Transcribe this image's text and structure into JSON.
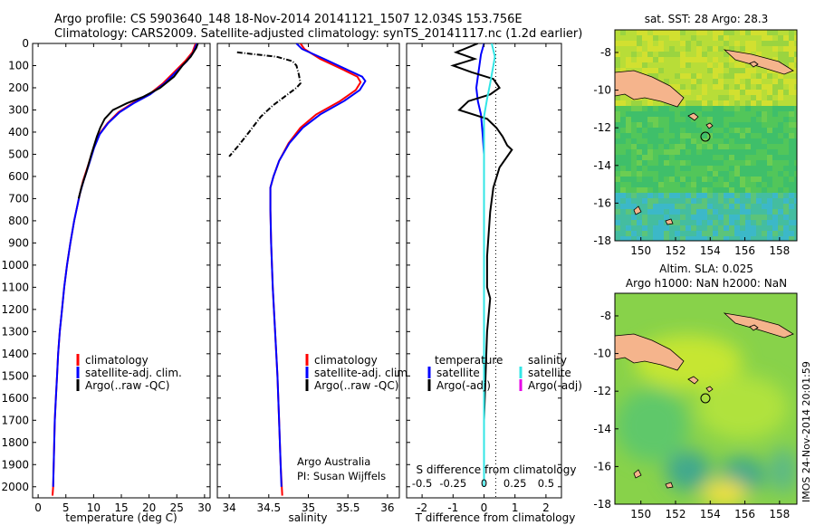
{
  "title": {
    "line1": "Argo profile: CS 5903640_148 18-Nov-2014 20141121_1507 12.034S 153.756E",
    "line2": "Climatology: CARS2009. Satellite-adjusted climatology: synTS_20141117.nc (1.2d earlier)"
  },
  "colors": {
    "climatology": "#ff0000",
    "satellite": "#0000ff",
    "argo": "#000000",
    "sal_satellite": "#33e6e6",
    "sal_argo": "#e600e6",
    "land": "#f5b48c"
  },
  "chart_data": [
    {
      "type": "line",
      "xlabel": "temperature (deg C)",
      "xticks": [
        "0",
        "5",
        "10",
        "15",
        "20",
        "25",
        "30"
      ],
      "xlim": [
        -1,
        31
      ],
      "ylim": [
        0,
        2050
      ],
      "yticks": [
        "0",
        "100",
        "200",
        "300",
        "400",
        "500",
        "600",
        "700",
        "800",
        "900",
        "1000",
        "1100",
        "1200",
        "1300",
        "1400",
        "1500",
        "1600",
        "1700",
        "1800",
        "1900",
        "2000"
      ],
      "legend": {
        "position": "lower-middle",
        "entries": [
          "climatology",
          "satellite-adj. clim.",
          "Argo(..raw -QC)"
        ]
      },
      "series": [
        {
          "name": "climatology",
          "color": "#ff0000",
          "points": [
            [
              28.4,
              0
            ],
            [
              27.8,
              40
            ],
            [
              26.5,
              80
            ],
            [
              24.5,
              130
            ],
            [
              22.5,
              180
            ],
            [
              20,
              230
            ],
            [
              17,
              270
            ],
            [
              14.5,
              310
            ],
            [
              12.5,
              360
            ],
            [
              11,
              410
            ],
            [
              10,
              470
            ],
            [
              9,
              550
            ],
            [
              8.1,
              620
            ],
            [
              7.5,
              680
            ],
            [
              6.5,
              800
            ],
            [
              5.8,
              900
            ],
            [
              5.2,
              1000
            ],
            [
              4.7,
              1100
            ],
            [
              4.3,
              1200
            ],
            [
              3.9,
              1300
            ],
            [
              3.6,
              1400
            ],
            [
              3.4,
              1500
            ],
            [
              3.2,
              1600
            ],
            [
              3,
              1700
            ],
            [
              2.9,
              1800
            ],
            [
              2.8,
              1900
            ],
            [
              2.7,
              2000
            ],
            [
              2.6,
              2040
            ]
          ]
        },
        {
          "name": "satellite-adj. clim.",
          "color": "#0000ff",
          "points": [
            [
              28.6,
              0
            ],
            [
              28,
              40
            ],
            [
              26.8,
              80
            ],
            [
              24.8,
              130
            ],
            [
              22.8,
              180
            ],
            [
              20.2,
              230
            ],
            [
              17.2,
              270
            ],
            [
              14.7,
              310
            ],
            [
              12.6,
              360
            ],
            [
              11.1,
              410
            ],
            [
              10.1,
              470
            ],
            [
              9.1,
              550
            ],
            [
              8.2,
              620
            ],
            [
              7.5,
              680
            ],
            [
              6.5,
              800
            ],
            [
              5.8,
              900
            ],
            [
              5.2,
              1000
            ],
            [
              4.7,
              1100
            ],
            [
              4.3,
              1200
            ],
            [
              3.9,
              1300
            ],
            [
              3.6,
              1400
            ],
            [
              3.4,
              1500
            ],
            [
              3.2,
              1600
            ],
            [
              3,
              1700
            ],
            [
              2.9,
              1800
            ],
            [
              2.8,
              1900
            ],
            [
              2.7,
              2000
            ]
          ]
        },
        {
          "name": "Argo(..raw -QC)",
          "color": "#000000",
          "points": [
            [
              28.8,
              0
            ],
            [
              28.5,
              20
            ],
            [
              27.5,
              60
            ],
            [
              26,
              100
            ],
            [
              24.5,
              150
            ],
            [
              22,
              200
            ],
            [
              19,
              240
            ],
            [
              16,
              270
            ],
            [
              13.5,
              300
            ],
            [
              12,
              340
            ],
            [
              11.2,
              380
            ],
            [
              10.6,
              420
            ],
            [
              9.6,
              500
            ],
            [
              8.7,
              580
            ],
            [
              7.8,
              650
            ],
            [
              7.3,
              700
            ]
          ]
        }
      ]
    },
    {
      "type": "line",
      "xlabel": "salinity",
      "xticks": [
        "34",
        "34.5",
        "35",
        "35.5",
        "36"
      ],
      "xlim": [
        33.85,
        36.15
      ],
      "ylim": [
        0,
        2050
      ],
      "legend": {
        "position": "lower-middle",
        "entries": [
          "climatology",
          "satellite-adj. clim.",
          "Argo(..raw -QC)"
        ]
      },
      "annotation": [
        "Argo Australia",
        "PI: Susan Wijffels"
      ],
      "series": [
        {
          "name": "climatology",
          "color": "#ff0000",
          "points": [
            [
              34.9,
              0
            ],
            [
              34.95,
              25
            ],
            [
              35.15,
              70
            ],
            [
              35.45,
              120
            ],
            [
              35.62,
              150
            ],
            [
              35.66,
              175
            ],
            [
              35.6,
              210
            ],
            [
              35.4,
              260
            ],
            [
              35.1,
              320
            ],
            [
              34.9,
              380
            ],
            [
              34.75,
              450
            ],
            [
              34.63,
              530
            ],
            [
              34.56,
              600
            ],
            [
              34.52,
              650
            ],
            [
              34.52,
              750
            ],
            [
              34.53,
              900
            ],
            [
              34.55,
              1100
            ],
            [
              34.58,
              1300
            ],
            [
              34.61,
              1500
            ],
            [
              34.63,
              1700
            ],
            [
              34.65,
              1900
            ],
            [
              34.67,
              2040
            ]
          ]
        },
        {
          "name": "satellite-adj. clim.",
          "color": "#0000ff",
          "points": [
            [
              34.85,
              0
            ],
            [
              34.92,
              25
            ],
            [
              35.2,
              70
            ],
            [
              35.5,
              120
            ],
            [
              35.68,
              150
            ],
            [
              35.72,
              170
            ],
            [
              35.65,
              210
            ],
            [
              35.45,
              260
            ],
            [
              35.15,
              320
            ],
            [
              34.93,
              380
            ],
            [
              34.76,
              450
            ],
            [
              34.63,
              530
            ],
            [
              34.56,
              600
            ],
            [
              34.52,
              650
            ],
            [
              34.52,
              750
            ],
            [
              34.53,
              900
            ],
            [
              34.55,
              1100
            ],
            [
              34.58,
              1300
            ],
            [
              34.61,
              1500
            ],
            [
              34.63,
              1700
            ],
            [
              34.65,
              1900
            ],
            [
              34.66,
              2000
            ]
          ]
        },
        {
          "name": "Argo(..raw -QC)",
          "color": "#000000",
          "dashed": true,
          "points": [
            [
              34.1,
              40
            ],
            [
              34.6,
              60
            ],
            [
              34.8,
              80
            ],
            [
              34.85,
              100
            ],
            [
              34.88,
              140
            ],
            [
              34.9,
              180
            ],
            [
              34.85,
              200
            ],
            [
              34.7,
              240
            ],
            [
              34.55,
              280
            ],
            [
              34.4,
              330
            ],
            [
              34.25,
              400
            ],
            [
              34.12,
              460
            ],
            [
              34.0,
              510
            ]
          ]
        }
      ]
    },
    {
      "type": "line",
      "xlabel": "T difference from climatology",
      "xticks": [
        "-2",
        "-1",
        "0",
        "1",
        "2"
      ],
      "xlim": [
        -2.5,
        2.5
      ],
      "ylim": [
        0,
        2050
      ],
      "top_axis_label": "S difference from climatology",
      "top_ticks": [
        "-0.5",
        "-0.25",
        "0",
        "0.25",
        "0.5"
      ],
      "legend": {
        "position": "lower",
        "columns": [
          {
            "header": "temperature",
            "entries": [
              "satellite",
              "Argo(-adj)"
            ]
          },
          {
            "header": "salinity",
            "entries": [
              "satellite",
              "Argo(-adj)"
            ]
          }
        ]
      },
      "series": [
        {
          "name": "temperature satellite",
          "color": "#0000ff",
          "points": [
            [
              0,
              0
            ],
            [
              -0.1,
              50
            ],
            [
              -0.15,
              100
            ],
            [
              -0.2,
              150
            ],
            [
              -0.25,
              200
            ],
            [
              -0.2,
              260
            ],
            [
              -0.1,
              320
            ],
            [
              -0.05,
              400
            ],
            [
              0,
              500
            ],
            [
              0,
              800
            ],
            [
              0,
              1200
            ],
            [
              0,
              1600
            ],
            [
              0,
              2000
            ]
          ]
        },
        {
          "name": "temperature Argo(-adj)",
          "color": "#000000",
          "points": [
            [
              -0.2,
              0
            ],
            [
              -0.9,
              40
            ],
            [
              -0.3,
              70
            ],
            [
              -1.0,
              100
            ],
            [
              -0.4,
              130
            ],
            [
              0.3,
              160
            ],
            [
              0.5,
              200
            ],
            [
              0.2,
              230
            ],
            [
              -0.5,
              260
            ],
            [
              -0.8,
              300
            ],
            [
              0.1,
              340
            ],
            [
              0.4,
              380
            ],
            [
              0.6,
              420
            ],
            [
              0.75,
              460
            ],
            [
              0.9,
              480
            ],
            [
              0.5,
              560
            ],
            [
              0.3,
              650
            ],
            [
              0.2,
              760
            ],
            [
              0.15,
              860
            ],
            [
              0.1,
              960
            ],
            [
              0.1,
              1100
            ],
            [
              0.2,
              1150
            ],
            [
              0.1,
              1300
            ],
            [
              0.05,
              1500
            ],
            [
              0,
              1700
            ],
            [
              0,
              2000
            ]
          ]
        },
        {
          "name": "salinity satellite",
          "color": "#33e6e6",
          "points": [
            [
              0.25,
              0
            ],
            [
              0.35,
              60
            ],
            [
              0.3,
              100
            ],
            [
              0.2,
              180
            ],
            [
              0.1,
              250
            ],
            [
              0,
              330
            ],
            [
              0,
              500
            ],
            [
              0,
              900
            ],
            [
              0,
              1400
            ],
            [
              0,
              2000
            ]
          ]
        }
      ]
    }
  ],
  "maps": {
    "top": {
      "title": "sat. SST: 28 Argo: 28.3",
      "xticks": [
        "150",
        "152",
        "154",
        "156",
        "158"
      ],
      "yticks": [
        "-8",
        "-10",
        "-12",
        "-14",
        "-16",
        "-18"
      ]
    },
    "bottom": {
      "title_line1": "Altim. SLA: 0.025",
      "title_line2": "Argo h1000: NaN h2000: NaN",
      "xticks": [
        "150",
        "152",
        "154",
        "156",
        "158"
      ],
      "yticks": [
        "-8",
        "-10",
        "-12",
        "-14",
        "-16",
        "-18"
      ]
    }
  },
  "side_label": "IMOS 24-Nov-2014 20:01:59"
}
